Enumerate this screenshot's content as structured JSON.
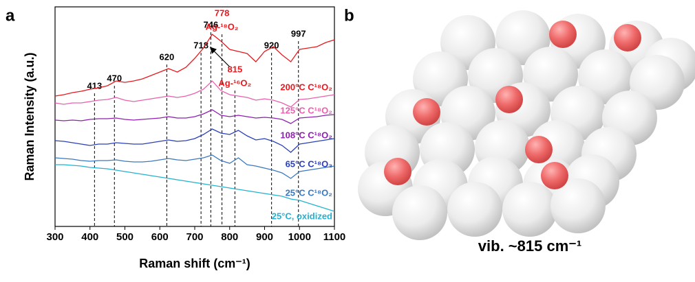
{
  "chart_data": {
    "type": "line",
    "panel_label": "a",
    "xlabel": "Raman shift (cm⁻¹)",
    "ylabel": "Raman Intensity (a.u.)",
    "x": [
      300,
      325,
      350,
      375,
      400,
      425,
      450,
      475,
      500,
      525,
      550,
      575,
      600,
      625,
      650,
      675,
      700,
      725,
      750,
      775,
      800,
      825,
      850,
      875,
      900,
      925,
      950,
      975,
      1000,
      1025,
      1050,
      1075,
      1100
    ],
    "xlim": [
      300,
      1100
    ],
    "xticks": [
      300,
      400,
      500,
      600,
      700,
      800,
      900,
      1000,
      1100
    ],
    "ylim": [
      0,
      320
    ],
    "series": [
      {
        "name": "200°C C¹⁸O₂",
        "color": "#e8191e",
        "values": [
          190,
          192,
          195,
          197,
          200,
          202,
          205,
          212,
          210,
          212,
          215,
          220,
          225,
          230,
          225,
          232,
          245,
          260,
          280,
          270,
          258,
          255,
          252,
          240,
          255,
          262,
          250,
          240,
          258,
          260,
          262,
          268,
          272
        ]
      },
      {
        "name": "125°C C¹⁸O₂",
        "color": "#ea5fae",
        "values": [
          180,
          178,
          180,
          180,
          182,
          184,
          185,
          188,
          184,
          182,
          184,
          186,
          188,
          190,
          188,
          190,
          194,
          200,
          212,
          198,
          192,
          190,
          188,
          184,
          186,
          184,
          180,
          174,
          185,
          186,
          188,
          190,
          192
        ]
      },
      {
        "name": "108°C C¹⁸O₂",
        "color": "#8f1fb0",
        "values": [
          155,
          154,
          155,
          154,
          156,
          157,
          157,
          158,
          156,
          155,
          156,
          157,
          158,
          160,
          158,
          158,
          160,
          164,
          170,
          162,
          160,
          162,
          160,
          158,
          159,
          158,
          156,
          150,
          158,
          159,
          160,
          162,
          163
        ]
      },
      {
        "name": "65°C C¹⁸O₂",
        "color": "#2a3fb8",
        "values": [
          125,
          124,
          122,
          120,
          118,
          120,
          120,
          122,
          121,
          120,
          120,
          122,
          124,
          126,
          124,
          125,
          128,
          134,
          142,
          136,
          134,
          140,
          132,
          126,
          128,
          124,
          118,
          108,
          120,
          122,
          124,
          126,
          128
        ]
      },
      {
        "name": "25°C C¹⁸O₂",
        "color": "#3a78c0",
        "values": [
          100,
          99,
          98,
          96,
          95,
          96,
          96,
          97,
          95,
          94,
          94,
          95,
          97,
          99,
          97,
          96,
          98,
          100,
          104,
          96,
          92,
          100,
          90,
          88,
          85,
          82,
          78,
          70,
          80,
          82,
          84,
          86,
          88
        ]
      },
      {
        "name": "25°C, oxidized",
        "color": "#22b2d0",
        "values": [
          90,
          90,
          89,
          88,
          86,
          85,
          84,
          82,
          80,
          78,
          76,
          74,
          72,
          70,
          68,
          66,
          64,
          62,
          60,
          58,
          56,
          54,
          52,
          50,
          48,
          46,
          44,
          40,
          38,
          34,
          30,
          26,
          22
        ]
      }
    ],
    "peaks": [
      413,
      470,
      620,
      718,
      746,
      778,
      815,
      920,
      997
    ],
    "peak_notes": [
      {
        "x": 778,
        "label": "Ag-¹⁸O₂",
        "color": "#e8191e"
      },
      {
        "x": 815,
        "label": "Ag-¹⁶O₂",
        "color": "#e8191e"
      }
    ],
    "right_panel_label": "b",
    "right_caption": "vib. ~815 cm⁻¹"
  }
}
